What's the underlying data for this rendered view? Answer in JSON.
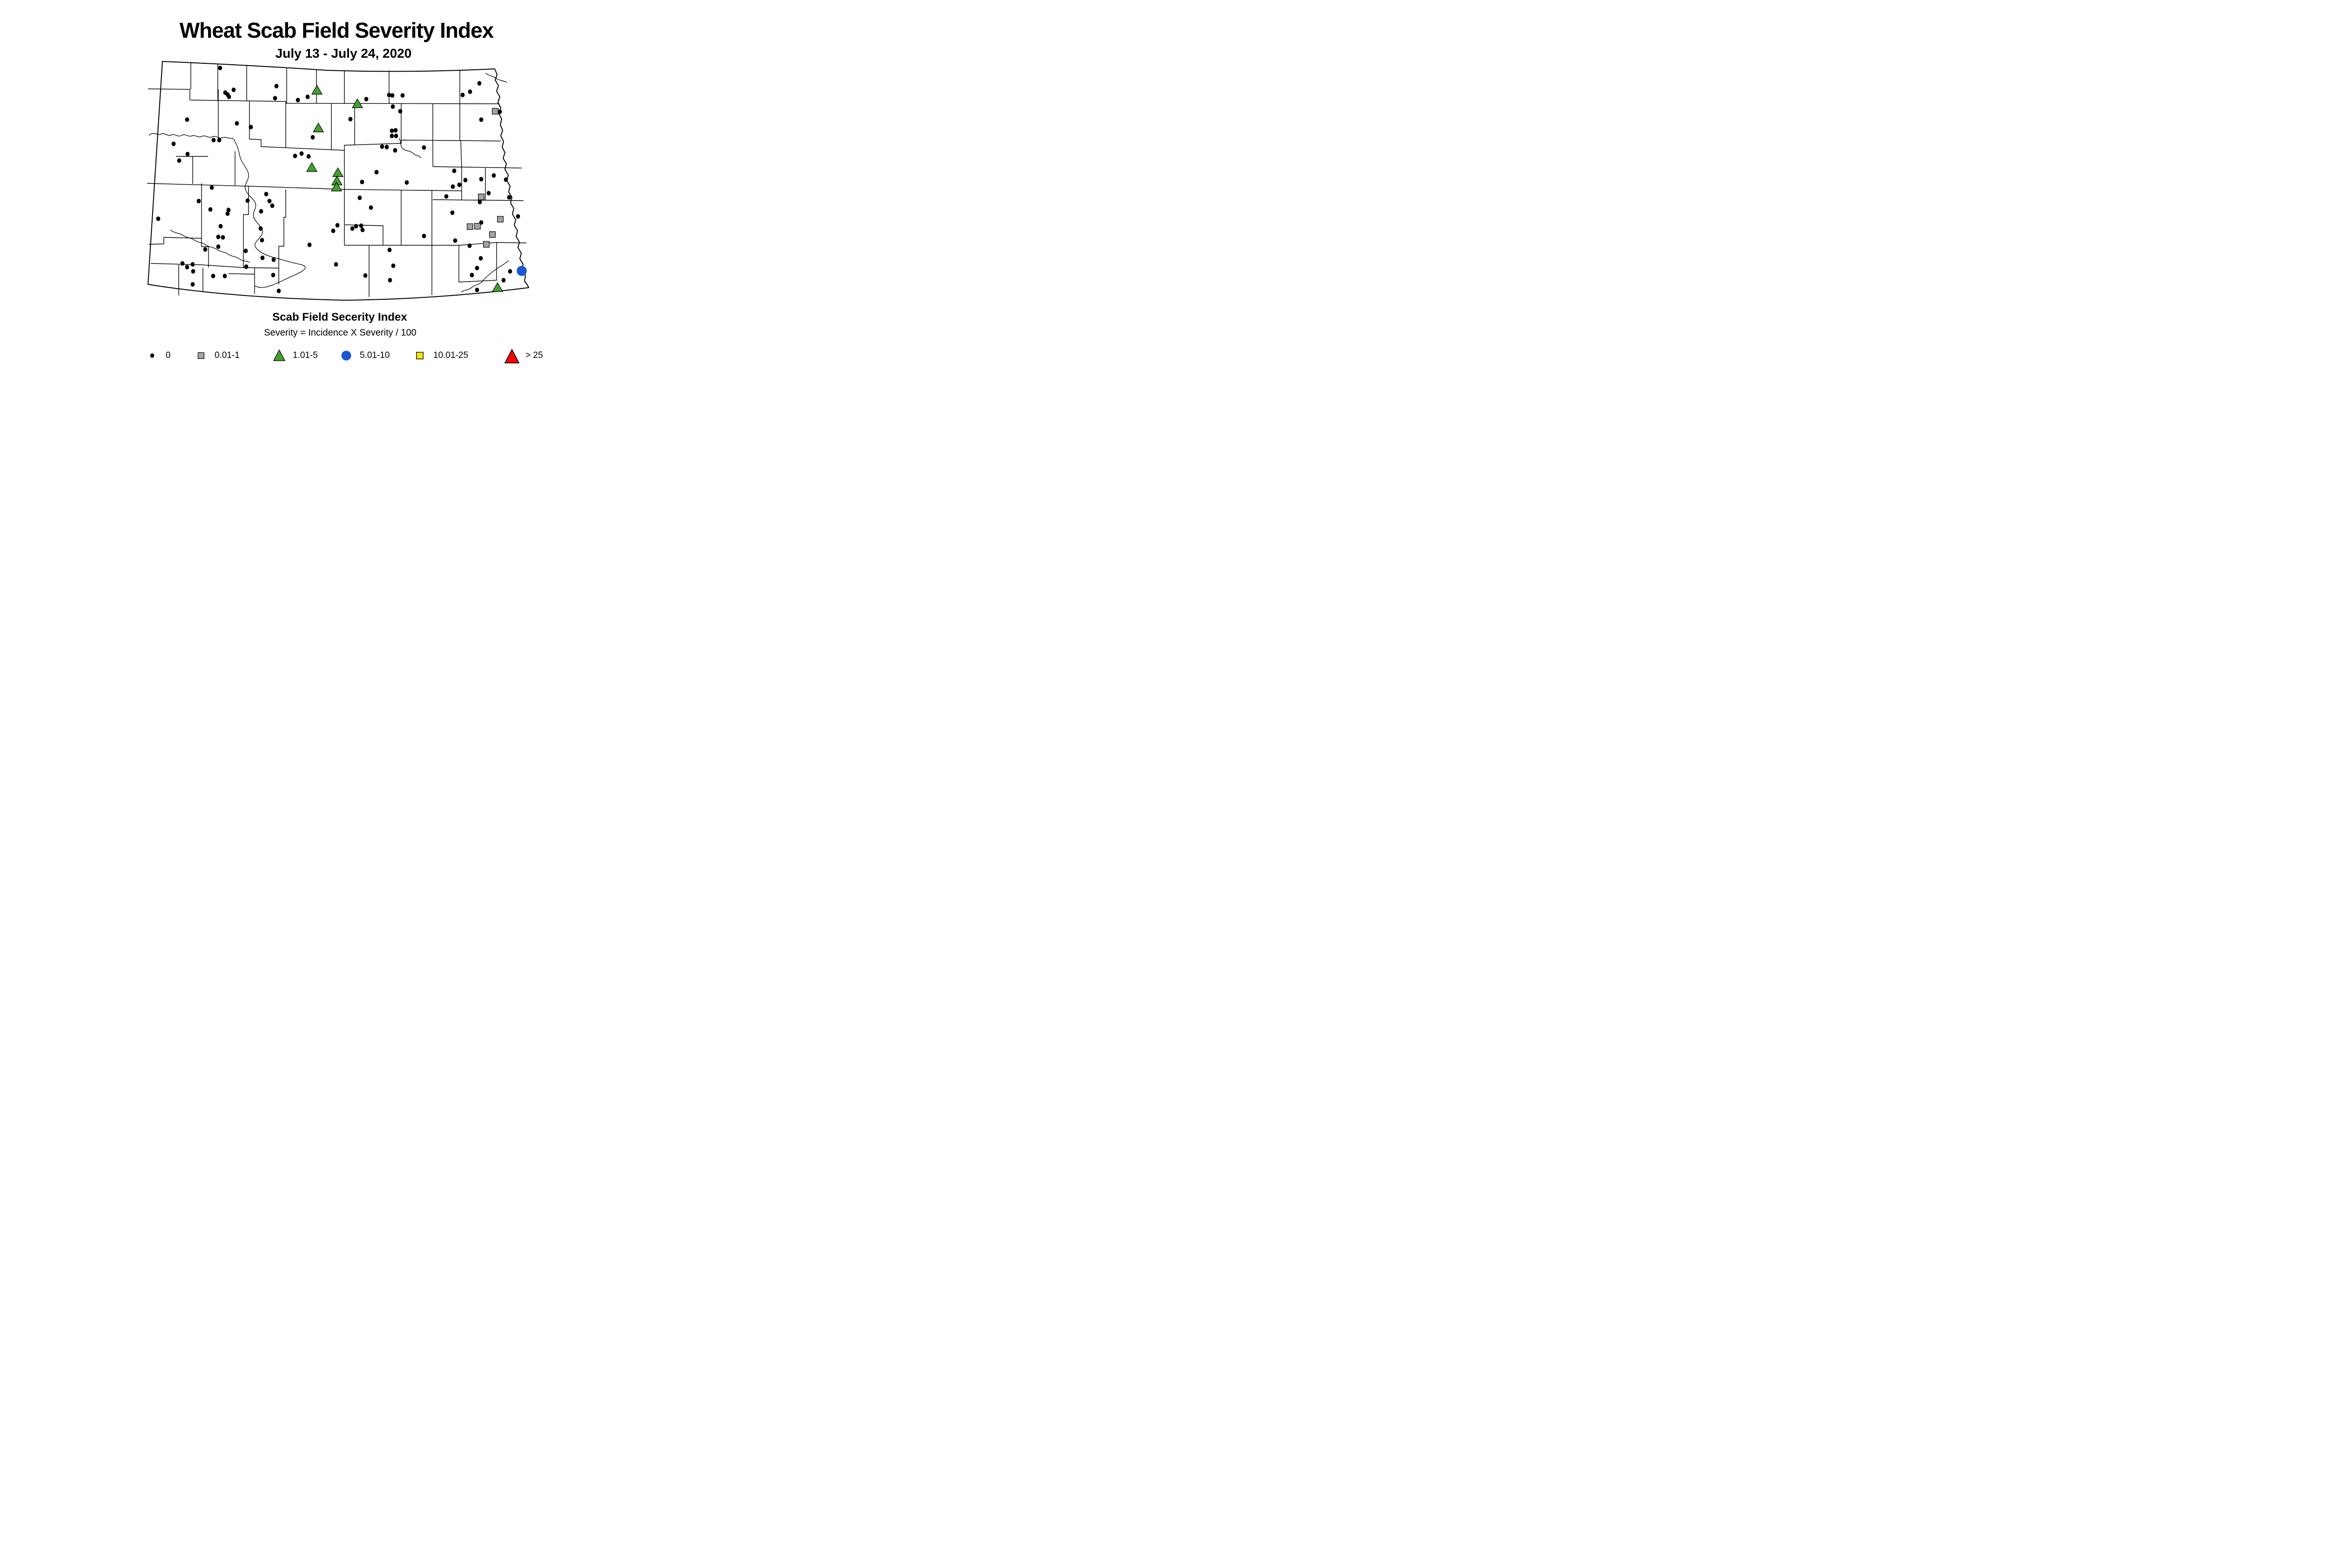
{
  "title": "Wheat Scab Field Severity Index",
  "subtitle": "July 13 - July 24, 2020",
  "legend": {
    "heading": "Scab Field Secerity Index",
    "formula": "Severity = Incidence X Severity / 100",
    "items": [
      {
        "label": "0",
        "shape": "dot",
        "color": "#000000"
      },
      {
        "label": "0.01-1",
        "shape": "square",
        "color": "#A3A3A3"
      },
      {
        "label": "1.01-5",
        "shape": "triangle",
        "color": "#42A02C"
      },
      {
        "label": "5.01-10",
        "shape": "circle",
        "color": "#1A56D6"
      },
      {
        "label": "10.01-25",
        "shape": "square",
        "color": "#EFE711"
      },
      {
        "label": "> 25",
        "shape": "triangle",
        "color": "#F90505"
      }
    ]
  },
  "chart_data": {
    "type": "scatter",
    "title": "Wheat Scab Field Severity Index",
    "subtitle": "July 13 - July 24, 2020",
    "legend_title": "Scab Field Secerity Index",
    "note": "Severity = Incidence X Severity / 100",
    "series": [
      {
        "name": "0",
        "marker": "black-dot",
        "points": [
          [
            473,
            146
          ],
          [
            502,
            193
          ],
          [
            484,
            199
          ],
          [
            489,
            203
          ],
          [
            492,
            208
          ],
          [
            594,
            185
          ],
          [
            591,
            211
          ],
          [
            640,
            215
          ],
          [
            661,
            208
          ],
          [
            402,
            257
          ],
          [
            509,
            265
          ],
          [
            539,
            273
          ],
          [
            672,
            295
          ],
          [
            459,
            301
          ],
          [
            471,
            301
          ],
          [
            373,
            309
          ],
          [
            403,
            331
          ],
          [
            385,
            345
          ],
          [
            634,
            335
          ],
          [
            648,
            330
          ],
          [
            663,
            336
          ],
          [
            787,
            213
          ],
          [
            753,
            256
          ],
          [
            836,
            204
          ],
          [
            843,
            205
          ],
          [
            865,
            205
          ],
          [
            844,
            229
          ],
          [
            860,
            239
          ],
          [
            1030,
            179
          ],
          [
            1010,
            197
          ],
          [
            994,
            204
          ],
          [
            1074,
            240
          ],
          [
            1034,
            257
          ],
          [
            842,
            281
          ],
          [
            850,
            280
          ],
          [
            842,
            292
          ],
          [
            851,
            292
          ],
          [
            821,
            315
          ],
          [
            831,
            316
          ],
          [
            849,
            323
          ],
          [
            911,
            317
          ],
          [
            976,
            367
          ],
          [
            1000,
            387
          ],
          [
            987,
            397
          ],
          [
            1034,
            385
          ],
          [
            1061,
            377
          ],
          [
            1087,
            386
          ],
          [
            973,
            401
          ],
          [
            809,
            370
          ],
          [
            874,
            392
          ],
          [
            778,
            391
          ],
          [
            455,
            403
          ],
          [
            572,
            417
          ],
          [
            427,
            432
          ],
          [
            532,
            431
          ],
          [
            579,
            432
          ],
          [
            585,
            442
          ],
          [
            452,
            450
          ],
          [
            491,
            451
          ],
          [
            489,
            459
          ],
          [
            561,
            454
          ],
          [
            340,
            470
          ],
          [
            474,
            486
          ],
          [
            560,
            491
          ],
          [
            469,
            509
          ],
          [
            479,
            510
          ],
          [
            563,
            516
          ],
          [
            665,
            526
          ],
          [
            469,
            530
          ],
          [
            441,
            536
          ],
          [
            528,
            539
          ],
          [
            725,
            484
          ],
          [
            716,
            496
          ],
          [
            564,
            554
          ],
          [
            588,
            558
          ],
          [
            722,
            568
          ],
          [
            392,
            566
          ],
          [
            414,
            568
          ],
          [
            402,
            574
          ],
          [
            415,
            583
          ],
          [
            529,
            573
          ],
          [
            458,
            593
          ],
          [
            483,
            593
          ],
          [
            587,
            591
          ],
          [
            414,
            611
          ],
          [
            599,
            625
          ],
          [
            959,
            422
          ],
          [
            1050,
            415
          ],
          [
            1094,
            424
          ],
          [
            1031,
            434
          ],
          [
            773,
            425
          ],
          [
            797,
            446
          ],
          [
            972,
            457
          ],
          [
            1113,
            465
          ],
          [
            1034,
            478
          ],
          [
            765,
            486
          ],
          [
            776,
            485
          ],
          [
            757,
            491
          ],
          [
            779,
            494
          ],
          [
            911,
            507
          ],
          [
            978,
            517
          ],
          [
            1009,
            528
          ],
          [
            837,
            537
          ],
          [
            845,
            571
          ],
          [
            1033,
            555
          ],
          [
            1025,
            576
          ],
          [
            1096,
            583
          ],
          [
            1014,
            591
          ],
          [
            785,
            592
          ],
          [
            838,
            602
          ],
          [
            1082,
            602
          ],
          [
            1025,
            623
          ]
        ]
      },
      {
        "name": "0.01-1",
        "marker": "gray-square",
        "points": [
          [
            1064,
            239
          ],
          [
            1034,
            423
          ],
          [
            1075,
            471
          ],
          [
            1010,
            487
          ],
          [
            1026,
            486
          ],
          [
            1058,
            504
          ],
          [
            1045,
            525
          ]
        ]
      },
      {
        "name": "1.01-5",
        "marker": "green-triangle",
        "points": [
          [
            681,
            194
          ],
          [
            768,
            223
          ],
          [
            684,
            275
          ],
          [
            670,
            360
          ],
          [
            726,
            371
          ],
          [
            724,
            389
          ],
          [
            723,
            402
          ],
          [
            1069,
            618
          ]
        ]
      },
      {
        "name": "5.01-10",
        "marker": "blue-circle",
        "points": [
          [
            1121,
            582
          ]
        ]
      },
      {
        "name": "10.01-25",
        "marker": "yellow-square",
        "points": []
      },
      {
        "name": "> 25",
        "marker": "red-triangle",
        "points": []
      }
    ]
  }
}
